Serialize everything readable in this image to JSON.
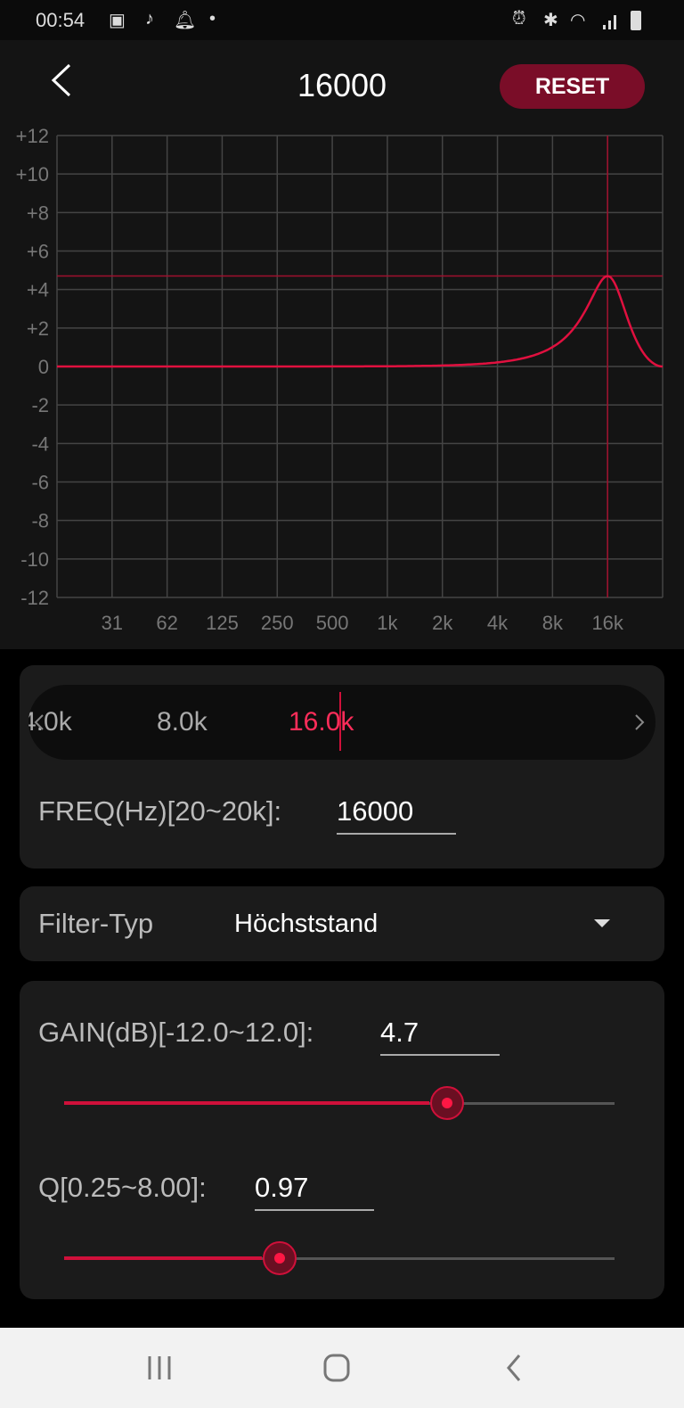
{
  "status": {
    "time": "00:54",
    "icons": [
      "image-icon",
      "music-icon",
      "bell-icon",
      "dot-icon",
      "alarm-icon",
      "bluetooth-icon",
      "wifi-icon",
      "signal-icon",
      "battery-icon"
    ]
  },
  "appbar": {
    "title": "16000",
    "reset_label": "RESET"
  },
  "colors": {
    "accent": "#d0103a",
    "reset_bg": "#7a0d28"
  },
  "chart_data": {
    "type": "line",
    "y_ticks": [
      "+12",
      "+10",
      "+8",
      "+6",
      "+4",
      "+2",
      "0",
      "-2",
      "-4",
      "-6",
      "-8",
      "-10",
      "-12"
    ],
    "x_ticks": [
      "31",
      "62",
      "125",
      "250",
      "500",
      "1k",
      "2k",
      "4k",
      "8k",
      "16k"
    ],
    "ylim": [
      -12,
      12
    ],
    "x_scale": "log",
    "grid": true,
    "filter": {
      "type": "peaking",
      "freq_hz": 16000,
      "gain_db": 4.7,
      "q": 0.97
    },
    "marker": {
      "freq_hz": 16000,
      "gain_db": 4.7
    }
  },
  "picker": {
    "items": [
      "4.0k",
      "8.0k",
      "16.0k"
    ],
    "selected": "16.0k"
  },
  "freq": {
    "label": "FREQ(Hz)[20~20k]:",
    "value": "16000"
  },
  "filter": {
    "label": "Filter-Typ",
    "value": "Höchststand"
  },
  "gain": {
    "label": "GAIN(dB)[-12.0~12.0]:",
    "value": "4.7",
    "min": -12,
    "max": 12,
    "num": 4.7
  },
  "q": {
    "label": "Q[0.25~8.00]:",
    "value": "0.97",
    "min": 0.25,
    "max": 8,
    "num": 0.97,
    "scale": "log"
  }
}
